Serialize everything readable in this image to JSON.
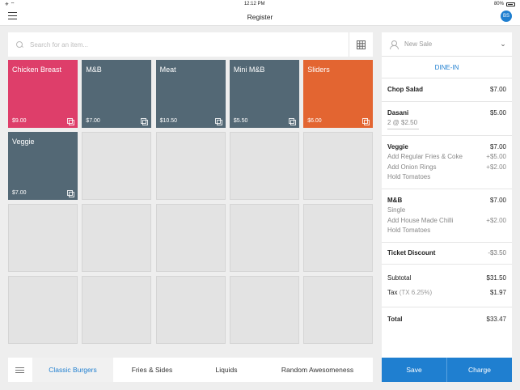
{
  "status_bar": {
    "left": "✈ ⌔",
    "time": "12:12 PM",
    "battery_pct": "80%"
  },
  "header": {
    "title": "Register",
    "avatar_initials": "BS"
  },
  "search": {
    "placeholder": "Search for an item..."
  },
  "tiles": [
    {
      "name": "Chicken Breast",
      "price": "$9.00",
      "color": "#de3e6a"
    },
    {
      "name": "M&B",
      "price": "$7.00",
      "color": "#536875"
    },
    {
      "name": "Meat",
      "price": "$10.50",
      "color": "#536875"
    },
    {
      "name": "Mini M&B",
      "price": "$5.50",
      "color": "#536875"
    },
    {
      "name": "Sliders",
      "price": "$6.00",
      "color": "#e36531"
    },
    {
      "name": "Veggie",
      "price": "$7.00",
      "color": "#536875"
    }
  ],
  "categories": {
    "tabs": [
      {
        "label": "Classic Burgers",
        "active": true
      },
      {
        "label": "Fries & Sides",
        "active": false
      },
      {
        "label": "Liquids",
        "active": false
      },
      {
        "label": "Random Awesomeness",
        "active": false
      }
    ]
  },
  "ticket": {
    "sale_label": "New Sale",
    "dine_in": "DINE-IN",
    "line_items": [
      {
        "name": "Chop Salad",
        "price": "$7.00",
        "mods": []
      },
      {
        "name": "Dasani",
        "price": "$5.00",
        "mods": [
          {
            "label": "2 @ $2.50",
            "price": "",
            "qty": true
          }
        ]
      },
      {
        "name": "Veggie",
        "price": "$7.00",
        "mods": [
          {
            "label": "Add Regular Fries & Coke",
            "price": "+$5.00"
          },
          {
            "label": "Add Onion Rings",
            "price": "+$2.00"
          },
          {
            "label": "Hold Tomatoes",
            "price": ""
          }
        ]
      },
      {
        "name": "M&B",
        "price": "$7.00",
        "mods": [
          {
            "label": "Single",
            "price": ""
          },
          {
            "label": "Add House Made Chilli",
            "price": "+$2.00"
          },
          {
            "label": "Hold Tomatoes",
            "price": ""
          }
        ]
      }
    ],
    "discount": {
      "label": "Ticket Discount",
      "value": "-$3.50"
    },
    "subtotal": {
      "label": "Subtotal",
      "value": "$31.50"
    },
    "tax": {
      "label": "Tax",
      "detail": "(TX 6.25%)",
      "value": "$1.97"
    },
    "total": {
      "label": "Total",
      "value": "$33.47"
    },
    "actions": {
      "save_label": "Save",
      "charge_label": "Charge"
    }
  },
  "colors": {
    "accent": "#1f7fd0",
    "tile_slate": "#536875",
    "tile_pink": "#de3e6a",
    "tile_orange": "#e36531"
  }
}
